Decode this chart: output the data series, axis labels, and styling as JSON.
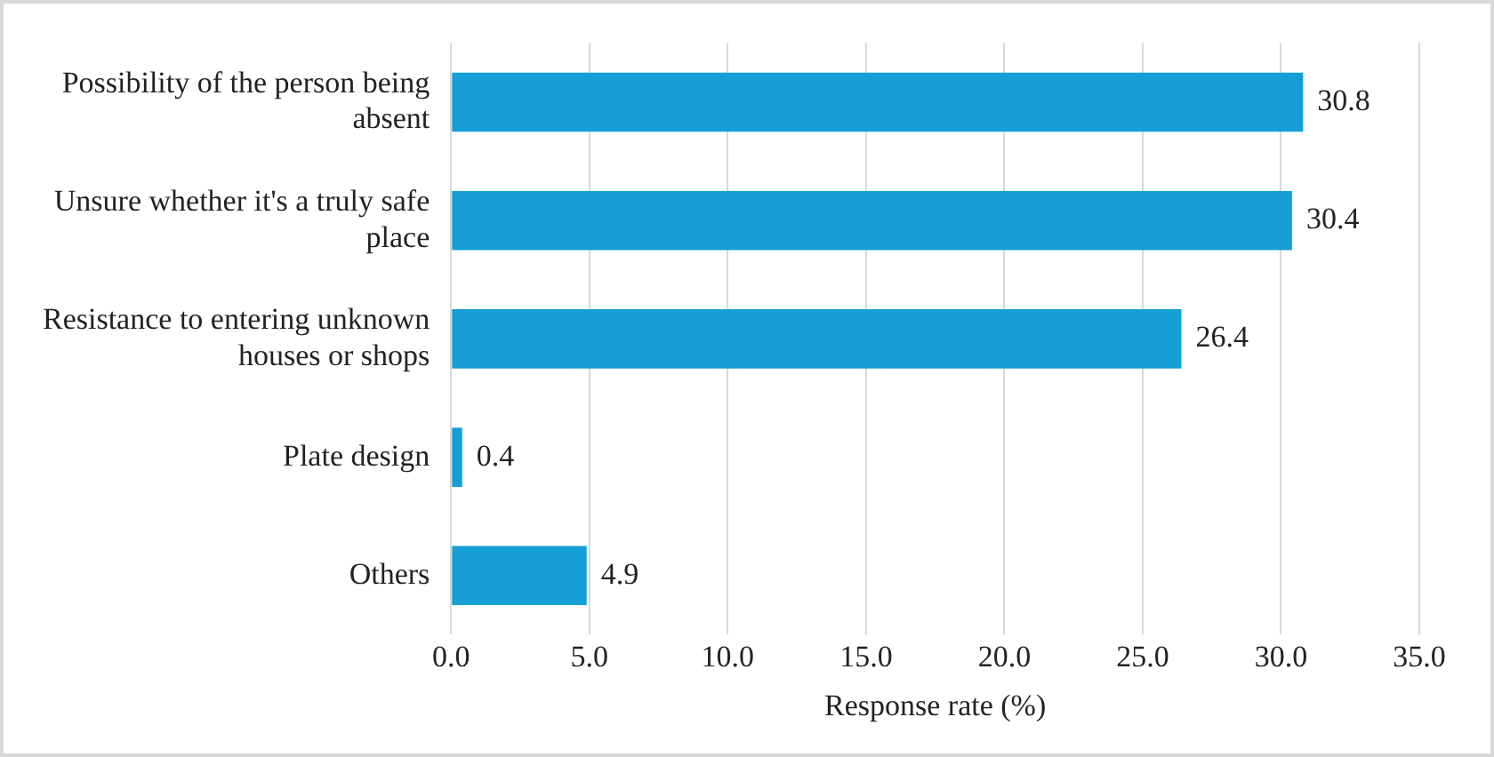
{
  "chart_data": {
    "type": "bar",
    "orientation": "horizontal",
    "categories": [
      "Possibility of the person being absent",
      "Unsure whether it's a truly safe place",
      "Resistance to entering unknown houses or shops",
      "Plate design",
      "Others"
    ],
    "values": [
      30.8,
      30.4,
      26.4,
      0.4,
      4.9
    ],
    "color": "#159fd6",
    "xlabel": "Response rate (%)",
    "xlim": [
      0,
      35
    ],
    "xticks": [
      {
        "value": 0,
        "label": "0.0"
      },
      {
        "value": 5,
        "label": "5.0"
      },
      {
        "value": 10,
        "label": "10.0"
      },
      {
        "value": 15,
        "label": "15.0"
      },
      {
        "value": 20,
        "label": "20.0"
      },
      {
        "value": 25,
        "label": "25.0"
      },
      {
        "value": 30,
        "label": "30.0"
      },
      {
        "value": 35,
        "label": "35.0"
      }
    ],
    "grid": "x",
    "data_labels": true,
    "legend": false
  }
}
